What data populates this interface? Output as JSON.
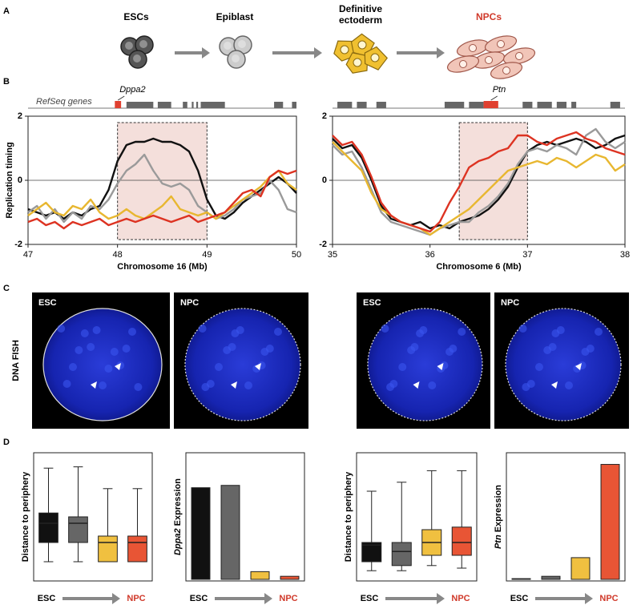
{
  "panel_labels": [
    "A",
    "B",
    "C",
    "D"
  ],
  "stages": [
    "ESCs",
    "Epiblast",
    "Definitive ectoderm",
    "NPCs"
  ],
  "fish": {
    "title": "DNA FISH",
    "labels": [
      "ESC",
      "NPC",
      "ESC",
      "NPC"
    ]
  },
  "chart_data": [
    {
      "type": "line",
      "ylabel": "Replication timing",
      "xlabel": "Chromosome 16 (Mb)",
      "track_label": "RefSeq genes",
      "xlim": [
        47,
        50
      ],
      "xticks": [
        47,
        48,
        49,
        50
      ],
      "ylim": [
        -2,
        2
      ],
      "yticks": [
        -2,
        0,
        2
      ],
      "hline": 0,
      "highlight": [
        48,
        49
      ],
      "gene_blocks": [
        [
          48.1,
          48.4
        ],
        [
          48.45,
          48.6
        ],
        [
          48.73,
          48.78
        ],
        [
          48.83,
          48.85
        ],
        [
          48.88,
          48.9
        ],
        [
          48.93,
          49.2
        ],
        [
          49.75,
          49.85
        ],
        [
          49.95,
          50
        ]
      ],
      "marked_gene": {
        "name": "Dppa2",
        "start": 47.97,
        "end": 48.04
      },
      "x": [
        47.0,
        47.1,
        47.2,
        47.3,
        47.4,
        47.5,
        47.6,
        47.7,
        47.8,
        47.9,
        48.0,
        48.1,
        48.2,
        48.3,
        48.4,
        48.5,
        48.6,
        48.7,
        48.8,
        48.9,
        49.0,
        49.1,
        49.2,
        49.3,
        49.4,
        49.5,
        49.6,
        49.7,
        49.8,
        49.9,
        50.0
      ],
      "series": [
        {
          "color": "#111111",
          "values": [
            -0.9,
            -1.0,
            -1.1,
            -1.0,
            -1.2,
            -1.0,
            -1.1,
            -0.9,
            -0.8,
            -0.3,
            0.6,
            1.1,
            1.2,
            1.2,
            1.3,
            1.2,
            1.2,
            1.1,
            0.9,
            0.3,
            -0.6,
            -1.1,
            -1.2,
            -1.0,
            -0.7,
            -0.5,
            -0.3,
            -0.1,
            0.1,
            -0.1,
            -0.4
          ]
        },
        {
          "color": "#9a9a9a",
          "values": [
            -1.0,
            -0.8,
            -1.2,
            -0.9,
            -1.3,
            -1.0,
            -1.2,
            -0.8,
            -0.9,
            -0.6,
            -0.1,
            0.3,
            0.5,
            0.8,
            0.3,
            -0.1,
            -0.2,
            -0.1,
            -0.3,
            -0.8,
            -1.0,
            -1.2,
            -1.1,
            -0.9,
            -0.6,
            -0.5,
            -0.4,
            0.0,
            -0.3,
            -0.9,
            -1.0
          ]
        },
        {
          "color": "#e8b730",
          "values": [
            -1.1,
            -0.9,
            -0.7,
            -1.0,
            -1.1,
            -0.8,
            -0.9,
            -0.6,
            -1.0,
            -1.2,
            -1.1,
            -0.9,
            -1.1,
            -1.2,
            -1.0,
            -0.8,
            -0.5,
            -0.9,
            -1.0,
            -1.1,
            -1.0,
            -1.2,
            -1.0,
            -0.8,
            -0.6,
            -0.4,
            -0.2,
            0.1,
            0.3,
            -0.1,
            -0.3
          ]
        },
        {
          "color": "#dd3322",
          "values": [
            -1.3,
            -1.2,
            -1.4,
            -1.3,
            -1.5,
            -1.3,
            -1.4,
            -1.3,
            -1.2,
            -1.4,
            -1.3,
            -1.2,
            -1.3,
            -1.2,
            -1.1,
            -1.2,
            -1.3,
            -1.2,
            -1.1,
            -1.3,
            -1.2,
            -1.1,
            -1.0,
            -0.7,
            -0.4,
            -0.3,
            -0.5,
            0.1,
            0.3,
            0.2,
            0.3
          ]
        }
      ]
    },
    {
      "type": "line",
      "xlabel": "Chromosome 6 (Mb)",
      "xlim": [
        35,
        38
      ],
      "xticks": [
        35,
        36,
        37,
        38
      ],
      "ylim": [
        -2,
        2
      ],
      "yticks": [
        -2,
        0,
        2
      ],
      "hline": 0,
      "highlight": [
        36.3,
        37.0
      ],
      "gene_blocks": [
        [
          35.05,
          35.2
        ],
        [
          35.25,
          35.35
        ],
        [
          35.45,
          35.55
        ],
        [
          36.15,
          36.35
        ],
        [
          36.4,
          36.55
        ],
        [
          36.95,
          37.05
        ],
        [
          37.1,
          37.25
        ],
        [
          37.3,
          37.4
        ],
        [
          37.45,
          37.5
        ],
        [
          37.85,
          37.95
        ]
      ],
      "marked_gene": {
        "name": "Ptn",
        "start": 36.55,
        "end": 36.7
      },
      "x": [
        35.0,
        35.1,
        35.2,
        35.3,
        35.4,
        35.5,
        35.6,
        35.7,
        35.8,
        35.9,
        36.0,
        36.1,
        36.2,
        36.3,
        36.4,
        36.5,
        36.6,
        36.7,
        36.8,
        36.9,
        37.0,
        37.1,
        37.2,
        37.3,
        37.4,
        37.5,
        37.6,
        37.7,
        37.8,
        37.9,
        38.0
      ],
      "series": [
        {
          "color": "#111111",
          "values": [
            1.3,
            1.0,
            1.1,
            0.7,
            0.0,
            -0.8,
            -1.2,
            -1.3,
            -1.4,
            -1.3,
            -1.5,
            -1.4,
            -1.5,
            -1.3,
            -1.2,
            -1.1,
            -0.9,
            -0.6,
            -0.2,
            0.4,
            0.9,
            1.1,
            1.2,
            1.1,
            1.2,
            1.3,
            1.2,
            1.0,
            1.1,
            1.3,
            1.4
          ]
        },
        {
          "color": "#9a9a9a",
          "values": [
            1.1,
            0.8,
            0.9,
            0.4,
            -0.3,
            -1.0,
            -1.3,
            -1.4,
            -1.5,
            -1.6,
            -1.7,
            -1.5,
            -1.4,
            -1.3,
            -1.3,
            -1.0,
            -0.8,
            -0.5,
            -0.1,
            0.5,
            0.9,
            1.0,
            0.9,
            1.1,
            1.0,
            0.8,
            1.4,
            1.6,
            1.2,
            1.0,
            1.2
          ]
        },
        {
          "color": "#e8b730",
          "values": [
            1.2,
            0.9,
            0.6,
            0.3,
            -0.4,
            -0.9,
            -1.1,
            -1.3,
            -1.4,
            -1.5,
            -1.7,
            -1.5,
            -1.3,
            -1.1,
            -0.9,
            -0.6,
            -0.3,
            0.0,
            0.3,
            0.4,
            0.5,
            0.6,
            0.5,
            0.7,
            0.6,
            0.4,
            0.6,
            0.8,
            0.7,
            0.3,
            0.5
          ]
        },
        {
          "color": "#dd3322",
          "values": [
            1.4,
            1.1,
            1.2,
            0.8,
            0.1,
            -0.7,
            -1.1,
            -1.3,
            -1.4,
            -1.5,
            -1.6,
            -1.3,
            -0.7,
            -0.2,
            0.4,
            0.6,
            0.7,
            0.9,
            1.0,
            1.4,
            1.4,
            1.2,
            1.1,
            1.3,
            1.4,
            1.5,
            1.3,
            1.2,
            1.0,
            0.9,
            0.8
          ]
        }
      ]
    },
    {
      "type": "box",
      "ylabel": "Distance to periphery",
      "x_start": "ESC",
      "x_end": "NPC",
      "ylim": [
        0,
        100
      ],
      "boxes": [
        {
          "color": "#111111",
          "low": 15,
          "q1": 30,
          "median": 45,
          "q3": 53,
          "high": 88
        },
        {
          "color": "#666666",
          "low": 15,
          "q1": 30,
          "median": 45,
          "q3": 50,
          "high": 89
        },
        {
          "color": "#f0c040",
          "low": 15,
          "q1": 15,
          "median": 30,
          "q3": 35,
          "high": 72
        },
        {
          "color": "#e85535",
          "low": 15,
          "q1": 15,
          "median": 30,
          "q3": 35,
          "high": 72
        }
      ]
    },
    {
      "type": "bar",
      "ylabel_gene": "Dppa2",
      "ylabel": "Expression",
      "x_start": "ESC",
      "x_end": "NPC",
      "ylim": [
        0,
        110
      ],
      "colors": [
        "#111111",
        "#666666",
        "#f0c040",
        "#e85535"
      ],
      "values": [
        80,
        82,
        8,
        4
      ]
    },
    {
      "type": "box",
      "ylabel": "Distance to periphery",
      "x_start": "ESC",
      "x_end": "NPC",
      "ylim": [
        0,
        100
      ],
      "boxes": [
        {
          "color": "#111111",
          "low": 8,
          "q1": 15,
          "median": 28,
          "q3": 30,
          "high": 70
        },
        {
          "color": "#666666",
          "low": 8,
          "q1": 12,
          "median": 23,
          "q3": 30,
          "high": 77
        },
        {
          "color": "#f0c040",
          "low": 12,
          "q1": 20,
          "median": 30,
          "q3": 40,
          "high": 86
        },
        {
          "color": "#e85535",
          "low": 10,
          "q1": 20,
          "median": 30,
          "q3": 42,
          "high": 86
        }
      ]
    },
    {
      "type": "bar",
      "ylabel_gene": "Ptn",
      "ylabel": "Expression",
      "x_start": "ESC",
      "x_end": "NPC",
      "ylim": [
        0,
        110
      ],
      "colors": [
        "#111111",
        "#666666",
        "#f0c040",
        "#e85535"
      ],
      "values": [
        2,
        4,
        20,
        100
      ]
    }
  ]
}
